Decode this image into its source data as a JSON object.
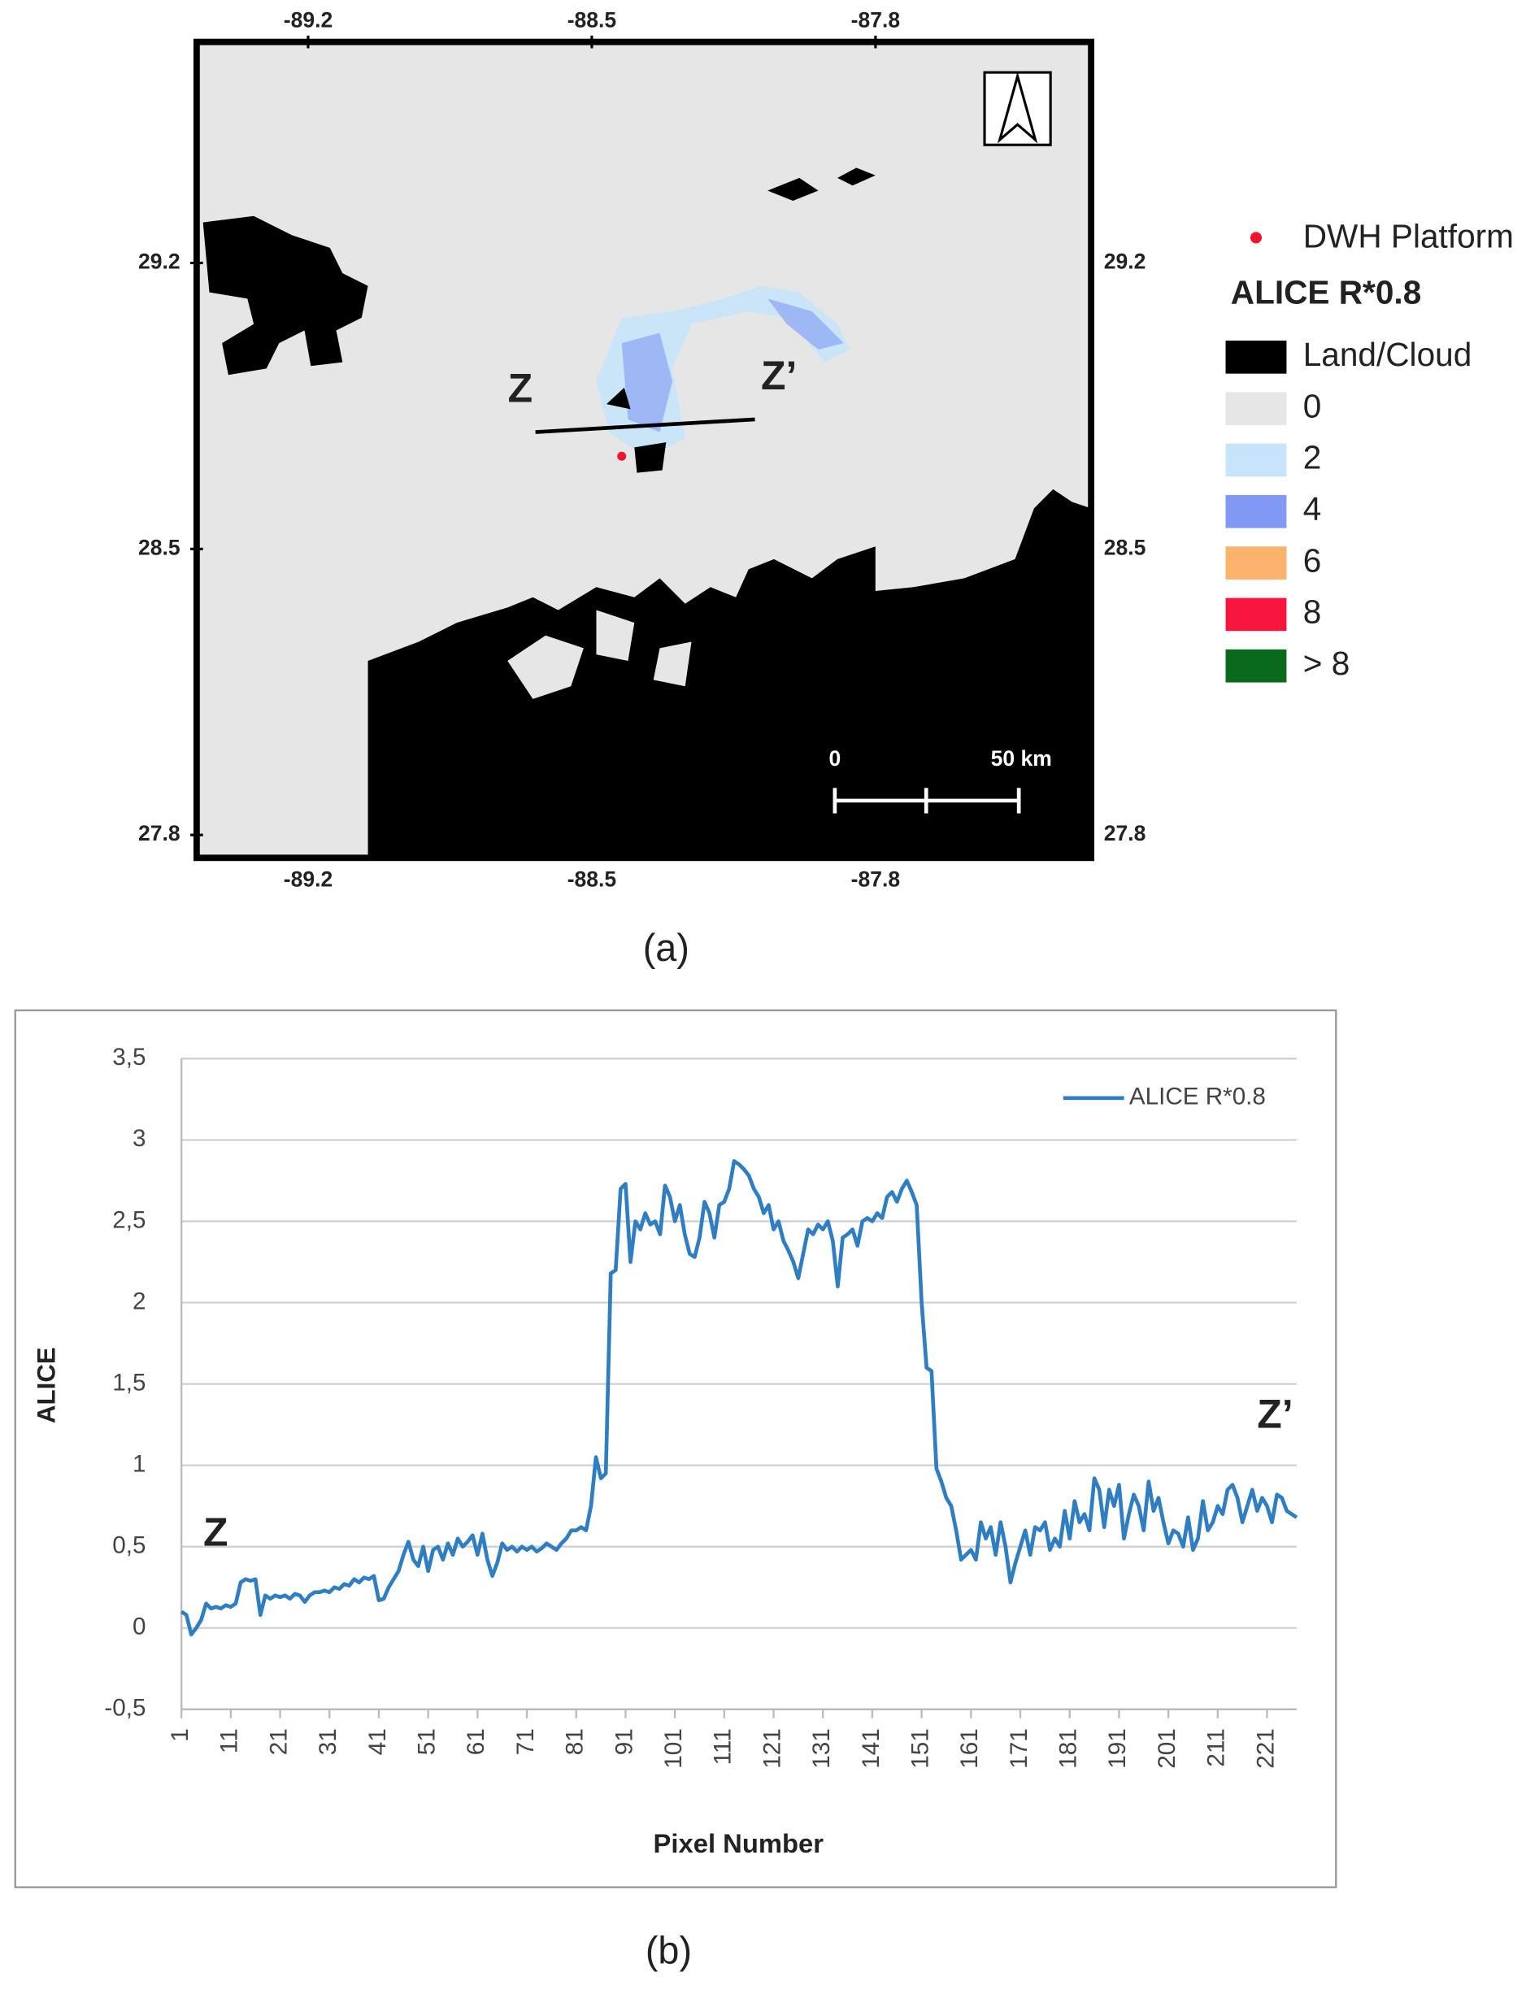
{
  "map": {
    "lon_ticks": [
      -89.2,
      -88.5,
      -87.8
    ],
    "lat_ticks": [
      29.2,
      28.5,
      27.8
    ],
    "xlim": [
      -89.475,
      -87.268
    ],
    "ylim": [
      27.744,
      29.741
    ],
    "point_label": "DWH Platform",
    "point_color": "#f0142d",
    "legend": {
      "title": "ALICE R*0.8",
      "items": [
        {
          "label": "Land/Cloud",
          "color": "#000000"
        },
        {
          "label": 0,
          "color": "#e6e6e6"
        },
        {
          "label": 2,
          "color": "#c6e4fa"
        },
        {
          "label": 4,
          "color": "#7f99f4"
        },
        {
          "label": 6,
          "color": "#fbb26c"
        },
        {
          "label": 8,
          "color": "#f5153d"
        },
        {
          "label": "> 8",
          "color": "#0a6a1c"
        }
      ]
    },
    "transect_start": "Z",
    "transect_end": "Z’",
    "scale_start": 0,
    "scale_end": "50 km",
    "caption": "(a)"
  },
  "chart_data": {
    "type": "line",
    "x_label": "Pixel Number",
    "y_label": "ALICE",
    "xlim": [
      1,
      227
    ],
    "xticks": [
      1,
      11,
      21,
      31,
      41,
      51,
      61,
      71,
      81,
      91,
      101,
      111,
      121,
      131,
      141,
      151,
      161,
      171,
      181,
      191,
      201,
      211,
      221
    ],
    "ylim": [
      -0.5,
      3.5
    ],
    "yticks": [
      {
        "value": -0.5,
        "label": "-0,5"
      },
      0,
      {
        "value": 0.5,
        "label": "0,5"
      },
      1,
      {
        "value": 1.5,
        "label": "1,5"
      },
      2,
      {
        "value": 2.5,
        "label": "2,5"
      },
      3,
      {
        "value": 3.5,
        "label": "3,5"
      }
    ],
    "grid": true,
    "legend": "upper right",
    "annotations": [
      "Z",
      "Z’"
    ],
    "x": [
      1,
      2,
      3,
      4,
      5,
      6,
      7,
      8,
      9,
      10,
      11,
      12,
      13,
      14,
      15,
      16,
      17,
      18,
      19,
      20,
      21,
      22,
      23,
      24,
      25,
      26,
      27,
      28,
      29,
      30,
      31,
      32,
      33,
      34,
      35,
      36,
      37,
      38,
      39,
      40,
      41,
      42,
      43,
      44,
      45,
      46,
      47,
      48,
      49,
      50,
      51,
      52,
      53,
      54,
      55,
      56,
      57,
      58,
      59,
      60,
      61,
      62,
      63,
      64,
      65,
      66,
      67,
      68,
      69,
      70,
      71,
      72,
      73,
      74,
      75,
      76,
      77,
      78,
      79,
      80,
      81,
      82,
      83,
      84,
      85,
      86,
      87,
      88,
      89,
      90,
      91,
      92,
      93,
      94,
      95,
      96,
      97,
      98,
      99,
      100,
      101,
      102,
      103,
      104,
      105,
      106,
      107,
      108,
      109,
      110,
      111,
      112,
      113,
      114,
      115,
      116,
      117,
      118,
      119,
      120,
      121,
      122,
      123,
      124,
      125,
      126,
      127,
      128,
      129,
      130,
      131,
      132,
      133,
      134,
      135,
      136,
      137,
      138,
      139,
      140,
      141,
      142,
      143,
      144,
      145,
      146,
      147,
      148,
      149,
      150,
      151,
      152,
      153,
      154,
      155,
      156,
      157,
      158,
      159,
      160,
      161,
      162,
      163,
      164,
      165,
      166,
      167,
      168,
      169,
      170,
      171,
      172,
      173,
      174,
      175,
      176,
      177,
      178,
      179,
      180,
      181,
      182,
      183,
      184,
      185,
      186,
      187,
      188,
      189,
      190,
      191,
      192,
      193,
      194,
      195,
      196,
      197,
      198,
      199,
      200,
      201,
      202,
      203,
      204,
      205,
      206,
      207,
      208,
      209,
      210,
      211,
      212,
      213,
      214,
      215,
      216,
      217,
      218,
      219,
      220,
      221,
      222,
      223,
      224,
      225,
      226,
      227
    ],
    "series": [
      {
        "name": "ALICE R*0.8",
        "color": "#2f7ec2",
        "values": [
          0.1,
          0.08,
          -0.04,
          0,
          0.05,
          0.15,
          0.12,
          0.13,
          0.12,
          0.14,
          0.13,
          0.15,
          0.28,
          0.3,
          0.29,
          0.3,
          0.08,
          0.2,
          0.18,
          0.2,
          0.19,
          0.2,
          0.18,
          0.21,
          0.2,
          0.16,
          0.2,
          0.22,
          0.22,
          0.23,
          0.22,
          0.25,
          0.24,
          0.27,
          0.26,
          0.3,
          0.28,
          0.31,
          0.3,
          0.32,
          0.17,
          0.18,
          0.25,
          0.3,
          0.35,
          0.45,
          0.53,
          0.42,
          0.38,
          0.5,
          0.35,
          0.48,
          0.5,
          0.42,
          0.52,
          0.45,
          0.55,
          0.5,
          0.53,
          0.57,
          0.45,
          0.58,
          0.42,
          0.32,
          0.4,
          0.52,
          0.48,
          0.5,
          0.47,
          0.5,
          0.48,
          0.5,
          0.47,
          0.49,
          0.52,
          0.5,
          0.48,
          0.52,
          0.55,
          0.6,
          0.6,
          0.62,
          0.6,
          0.75,
          1.05,
          0.92,
          0.95,
          2.18,
          2.2,
          2.7,
          2.73,
          2.25,
          2.5,
          2.45,
          2.55,
          2.48,
          2.5,
          2.42,
          2.72,
          2.65,
          2.5,
          2.6,
          2.42,
          2.3,
          2.28,
          2.4,
          2.62,
          2.55,
          2.4,
          2.6,
          2.62,
          2.7,
          2.87,
          2.85,
          2.82,
          2.78,
          2.7,
          2.65,
          2.55,
          2.6,
          2.45,
          2.5,
          2.38,
          2.32,
          2.25,
          2.15,
          2.3,
          2.45,
          2.42,
          2.48,
          2.45,
          2.5,
          2.38,
          2.1,
          2.4,
          2.42,
          2.45,
          2.35,
          2.5,
          2.52,
          2.5,
          2.55,
          2.52,
          2.65,
          2.68,
          2.62,
          2.7,
          2.75,
          2.68,
          2.6,
          2.0,
          1.6,
          1.58,
          0.98,
          0.9,
          0.8,
          0.75,
          0.6,
          0.42,
          0.45,
          0.48,
          0.42,
          0.65,
          0.55,
          0.62,
          0.45,
          0.65,
          0.5,
          0.28,
          0.4,
          0.5,
          0.6,
          0.45,
          0.62,
          0.6,
          0.65,
          0.48,
          0.55,
          0.5,
          0.72,
          0.55,
          0.78,
          0.65,
          0.7,
          0.6,
          0.92,
          0.85,
          0.62,
          0.85,
          0.75,
          0.88,
          0.55,
          0.7,
          0.82,
          0.75,
          0.6,
          0.9,
          0.72,
          0.8,
          0.65,
          0.52,
          0.6,
          0.58,
          0.5,
          0.68,
          0.48,
          0.55,
          0.78,
          0.6,
          0.65,
          0.75,
          0.7,
          0.85,
          0.88,
          0.8,
          0.65,
          0.75,
          0.85,
          0.72,
          0.8,
          0.75,
          0.65,
          0.82,
          0.8,
          0.72,
          0.7,
          0.68
        ]
      }
    ],
    "caption": "(b)"
  }
}
